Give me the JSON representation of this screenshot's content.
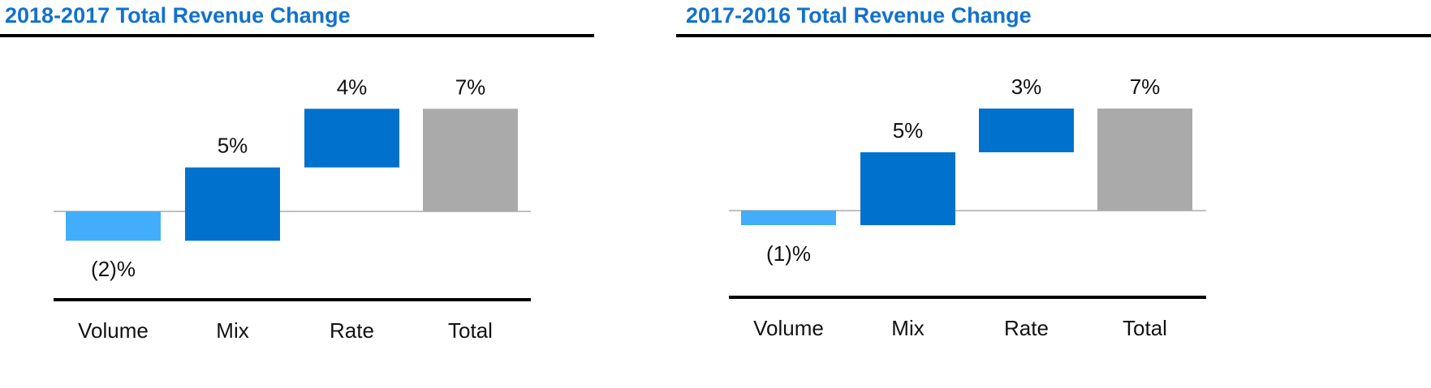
{
  "colors": {
    "increase": "#0072CE",
    "decrease": "#42ADFA",
    "total": "#AAAAAA",
    "title": "#1272CC"
  },
  "chart_data": [
    {
      "type": "bar",
      "subtype": "waterfall",
      "title": "2018-2017 Total Revenue Change",
      "categories": [
        "Volume",
        "Mix",
        "Rate",
        "Total"
      ],
      "values": [
        -2,
        5,
        4,
        7
      ],
      "kinds": [
        "decrease",
        "increase",
        "increase",
        "total"
      ],
      "labels": [
        "(2)%",
        "5%",
        "4%",
        "7%"
      ],
      "unit": "%",
      "ylim": [
        -6,
        8
      ]
    },
    {
      "type": "bar",
      "subtype": "waterfall",
      "title": "2017-2016 Total Revenue Change",
      "categories": [
        "Volume",
        "Mix",
        "Rate",
        "Total"
      ],
      "values": [
        -1,
        5,
        3,
        7
      ],
      "kinds": [
        "decrease",
        "increase",
        "increase",
        "total"
      ],
      "labels": [
        "(1)%",
        "5%",
        "3%",
        "7%"
      ],
      "unit": "%",
      "ylim": [
        -6,
        8
      ]
    }
  ]
}
